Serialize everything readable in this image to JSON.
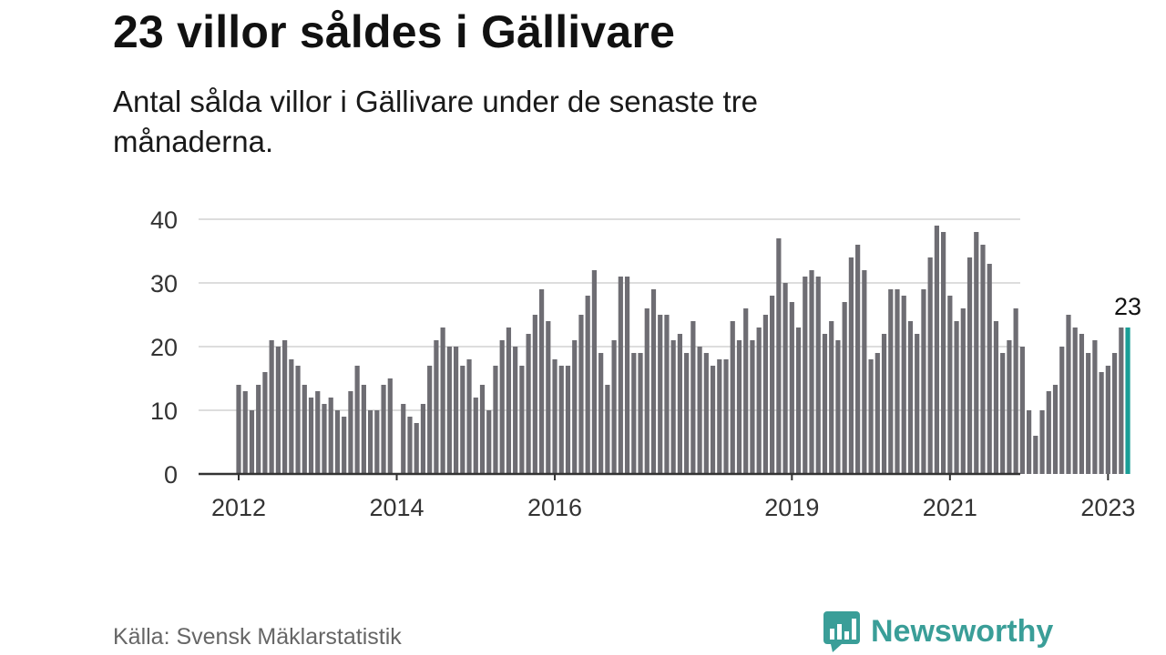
{
  "title": "23 villor såldes i Gällivare",
  "subtitle": "Antal sålda villor i Gällivare under de senaste tre månaderna.",
  "source": "Källa: Svensk Mäklarstatistik",
  "brand": {
    "name": "Newsworthy",
    "icon": "bar-chart-speech-bubble-icon",
    "color": "#3a9e98"
  },
  "colors": {
    "bar": "#6e6d73",
    "highlight": "#1a9e96",
    "grid": "#dddddd",
    "axis": "#333333"
  },
  "chart_data": {
    "type": "bar",
    "title": "23 villor såldes i Gällivare",
    "xlabel": "",
    "ylabel": "",
    "ylim": [
      0,
      40
    ],
    "yticks": [
      0,
      10,
      20,
      30,
      40
    ],
    "grid": true,
    "start_month": "2012-01",
    "xtick_labels": [
      {
        "label": "2012",
        "index": 0
      },
      {
        "label": "2014",
        "index": 24
      },
      {
        "label": "2016",
        "index": 48
      },
      {
        "label": "2019",
        "index": 84
      },
      {
        "label": "2021",
        "index": 108
      },
      {
        "label": "2023",
        "index": 132
      }
    ],
    "series": [
      {
        "values": [
          14,
          13,
          10,
          14,
          16,
          21,
          20,
          21,
          18,
          17,
          14,
          12,
          13,
          11,
          12,
          10,
          9,
          13,
          17,
          14,
          10,
          10,
          14,
          15,
          0,
          11,
          9,
          8,
          11,
          17,
          21,
          23,
          20,
          20,
          17,
          18,
          12,
          14,
          10,
          17,
          21,
          23,
          20,
          17,
          22,
          25,
          29,
          24,
          18,
          17,
          17,
          21,
          25,
          28,
          32,
          19,
          14,
          21,
          31,
          31,
          19,
          19,
          26,
          29,
          25,
          25,
          21,
          22,
          19,
          24,
          20,
          19,
          17,
          18,
          18,
          24,
          21,
          26,
          21,
          23,
          25,
          28,
          37,
          30,
          27,
          23,
          31,
          32,
          31,
          22,
          24,
          21,
          27,
          34,
          36,
          32,
          18,
          19,
          22,
          29,
          29,
          28,
          24,
          22,
          29,
          34,
          39,
          38,
          28,
          24,
          26,
          34,
          38,
          36,
          33,
          24,
          19,
          21,
          26,
          20,
          10,
          6,
          10,
          13,
          14,
          20,
          25,
          23,
          22,
          19,
          21,
          16,
          17,
          19,
          23,
          23
        ]
      }
    ],
    "highlight": {
      "index": 135,
      "label": "23"
    }
  }
}
